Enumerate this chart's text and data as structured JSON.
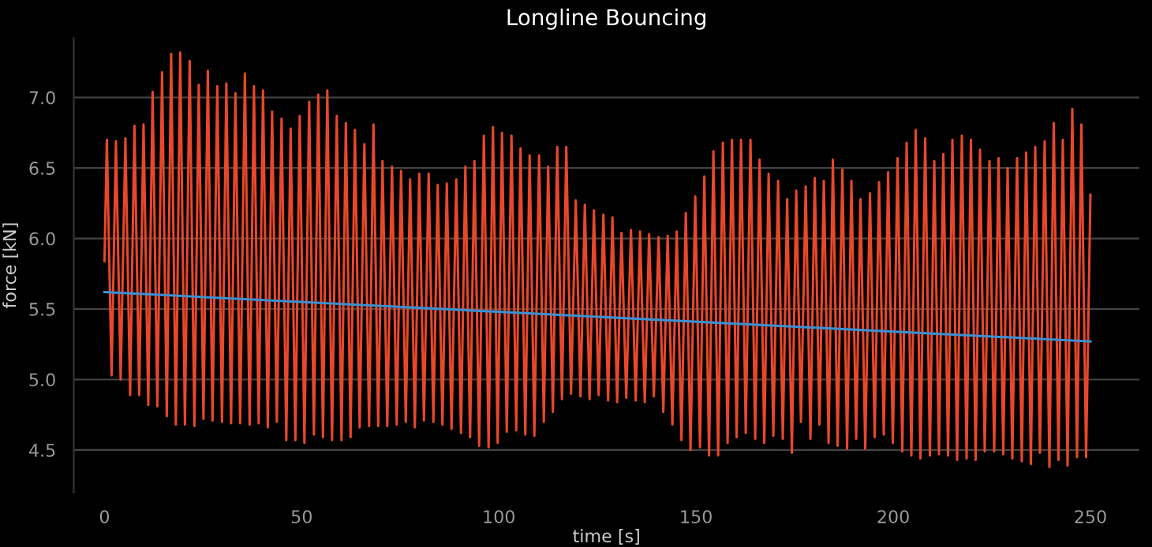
{
  "chart_data": {
    "type": "line",
    "title": "Longline Bouncing",
    "xlabel": "time [s]",
    "ylabel": "force [kN]",
    "xlim": [
      -7.8,
      262.4
    ],
    "ylim": [
      4.2,
      7.42
    ],
    "xticks": [
      0,
      50,
      100,
      150,
      200,
      250
    ],
    "yticks": [
      4.5,
      {
        "value": 5,
        "label": "5.0"
      },
      5.5,
      {
        "value": 6,
        "label": "6.0"
      },
      6.5,
      {
        "value": 7,
        "label": "7.0"
      }
    ],
    "grid": "y",
    "legend": false,
    "series": [
      {
        "color": "#e8472a",
        "x": [
          0,
          0.6,
          1.8,
          2.9,
          4.1,
          5.3,
          6.5,
          7.6,
          8.8,
          9.9,
          11.1,
          12.2,
          13.4,
          14.6,
          15.8,
          16.9,
          18.1,
          19.2,
          20.4,
          21.6,
          22.8,
          23.9,
          25.1,
          26.2,
          27.4,
          28.6,
          29.8,
          30.9,
          32.1,
          33.2,
          34.4,
          35.6,
          36.8,
          37.9,
          39.1,
          40.2,
          41.4,
          42.5,
          43.7,
          44.9,
          46.1,
          47.2,
          48.4,
          49.5,
          50.7,
          51.9,
          53.1,
          54.2,
          55.4,
          56.5,
          57.7,
          58.9,
          60.1,
          61.2,
          62.4,
          63.5,
          64.7,
          65.9,
          67.1,
          68.2,
          69.4,
          70.5,
          71.7,
          72.9,
          74.1,
          75.2,
          76.4,
          77.5,
          78.7,
          79.8,
          81.0,
          82.2,
          83.4,
          84.5,
          85.7,
          86.8,
          88.0,
          89.2,
          90.4,
          91.5,
          92.7,
          93.8,
          95.0,
          96.2,
          97.4,
          98.5,
          99.7,
          100.8,
          102.0,
          103.2,
          104.4,
          105.5,
          106.7,
          107.8,
          109.0,
          110.2,
          111.4,
          112.5,
          113.7,
          114.8,
          116.0,
          117.1,
          118.3,
          119.5,
          120.7,
          121.8,
          123.0,
          124.1,
          125.3,
          126.5,
          127.7,
          128.8,
          130.0,
          131.1,
          132.3,
          133.5,
          134.7,
          135.8,
          137.0,
          138.1,
          139.3,
          140.5,
          141.7,
          142.8,
          144.0,
          145.1,
          146.3,
          147.4,
          148.6,
          149.8,
          151.0,
          152.1,
          153.3,
          154.4,
          155.6,
          156.8,
          158.0,
          159.1,
          160.3,
          161.4,
          162.6,
          163.8,
          165.0,
          166.1,
          167.3,
          168.4,
          169.6,
          170.8,
          172.0,
          173.1,
          174.3,
          175.4,
          176.6,
          177.8,
          179.0,
          180.1,
          181.3,
          182.4,
          183.6,
          184.7,
          185.9,
          187.1,
          188.3,
          189.4,
          190.6,
          191.7,
          192.9,
          194.1,
          195.3,
          196.4,
          197.6,
          198.7,
          199.9,
          201.1,
          202.3,
          203.4,
          204.6,
          205.7,
          206.9,
          208.1,
          209.3,
          210.4,
          211.6,
          212.7,
          213.9,
          215.0,
          216.2,
          217.4,
          218.6,
          219.7,
          220.9,
          222.0,
          223.2,
          224.4,
          225.6,
          226.7,
          227.9,
          229.0,
          230.2,
          231.4,
          232.6,
          233.7,
          234.9,
          236.0,
          237.2,
          238.4,
          239.6,
          240.7,
          241.9,
          243.0,
          244.2,
          245.4,
          246.6,
          247.7,
          248.9,
          250
        ],
        "values": [
          5.84,
          6.7,
          5.03,
          6.69,
          5.0,
          6.71,
          4.89,
          6.8,
          4.89,
          6.81,
          4.82,
          7.04,
          4.81,
          7.18,
          4.74,
          7.31,
          4.68,
          7.32,
          4.68,
          7.26,
          4.67,
          7.09,
          4.72,
          7.19,
          4.71,
          7.08,
          4.7,
          7.1,
          4.69,
          7.03,
          4.69,
          7.17,
          4.68,
          7.08,
          4.69,
          7.05,
          4.66,
          6.9,
          4.7,
          6.85,
          4.57,
          6.78,
          4.57,
          6.87,
          4.55,
          6.97,
          4.61,
          7.02,
          4.59,
          7.05,
          4.57,
          6.87,
          4.57,
          6.82,
          4.59,
          6.77,
          4.66,
          6.67,
          4.67,
          6.81,
          4.67,
          6.55,
          4.67,
          6.51,
          4.68,
          6.48,
          4.7,
          6.42,
          4.66,
          6.46,
          4.71,
          6.46,
          4.7,
          6.38,
          4.68,
          6.39,
          4.65,
          6.42,
          4.62,
          6.51,
          4.59,
          6.55,
          4.53,
          6.73,
          4.52,
          6.79,
          4.55,
          6.75,
          4.63,
          6.73,
          4.64,
          6.64,
          4.61,
          6.59,
          4.6,
          6.59,
          4.7,
          6.51,
          4.77,
          6.65,
          4.86,
          6.65,
          4.9,
          6.27,
          4.88,
          6.24,
          4.86,
          6.2,
          4.89,
          6.17,
          4.85,
          6.15,
          4.84,
          6.04,
          4.87,
          6.06,
          4.85,
          6.05,
          4.84,
          6.03,
          4.88,
          6.01,
          4.77,
          6.02,
          4.68,
          6.05,
          4.57,
          6.18,
          4.5,
          6.3,
          4.52,
          6.44,
          4.46,
          6.62,
          4.46,
          6.68,
          4.55,
          6.7,
          4.59,
          6.7,
          4.62,
          6.7,
          4.58,
          6.56,
          4.55,
          6.46,
          4.6,
          6.41,
          4.58,
          6.28,
          4.48,
          6.34,
          4.7,
          6.37,
          4.58,
          6.43,
          4.68,
          6.41,
          4.55,
          6.56,
          4.53,
          6.49,
          4.51,
          6.41,
          4.58,
          6.28,
          4.51,
          6.32,
          4.59,
          6.4,
          4.61,
          6.47,
          4.55,
          6.57,
          4.49,
          6.68,
          4.46,
          6.77,
          4.44,
          6.71,
          4.46,
          6.55,
          4.47,
          6.6,
          4.46,
          6.7,
          4.43,
          6.73,
          4.44,
          6.7,
          4.43,
          6.63,
          4.49,
          6.55,
          4.49,
          6.57,
          4.47,
          6.5,
          4.44,
          6.57,
          4.42,
          6.61,
          4.4,
          6.65,
          4.48,
          6.69,
          4.38,
          6.82,
          4.43,
          6.7,
          4.39,
          6.92,
          4.45,
          6.81,
          4.45,
          6.31
        ]
      },
      {
        "color": "#3d8fd1",
        "x": [
          0,
          250
        ],
        "values": [
          5.62,
          5.27
        ]
      }
    ]
  }
}
